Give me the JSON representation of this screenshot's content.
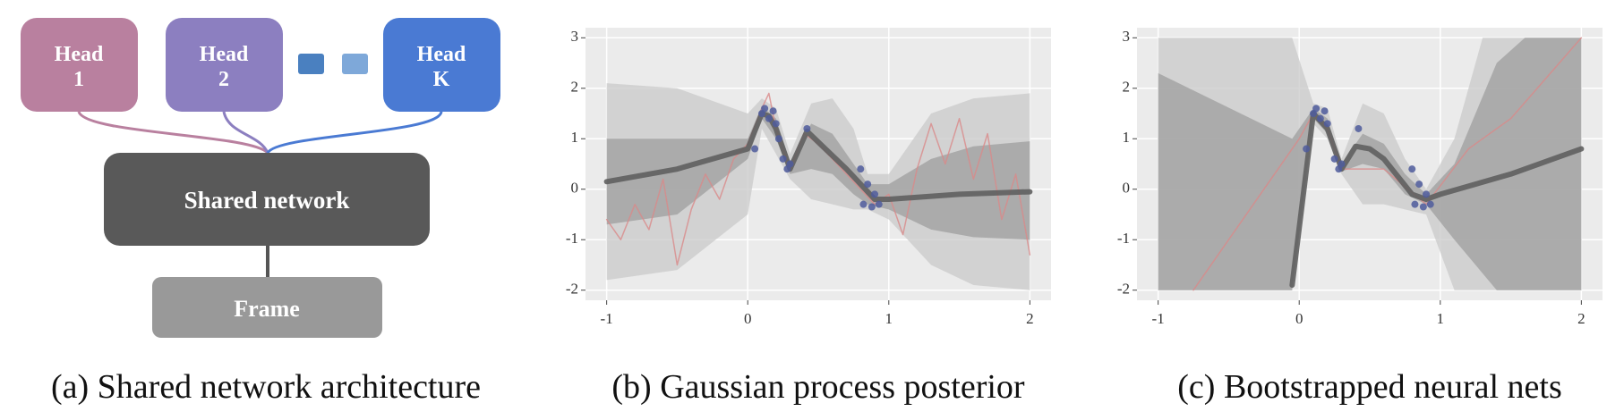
{
  "diagram": {
    "nodes": [
      {
        "label": [
          "Head",
          "1"
        ]
      },
      {
        "label": [
          "Head",
          "2"
        ]
      },
      {
        "label": [
          "Head",
          "K"
        ]
      },
      {
        "label": [
          "Shared network"
        ]
      },
      {
        "label": [
          "Frame"
        ]
      }
    ]
  },
  "captions": [
    "(a) Shared network architecture",
    "(b) Gaussian process posterior",
    "(c) Bootstrapped neural nets"
  ],
  "chart_data": [
    {
      "type": "band",
      "xlim": [
        -1.15,
        2.15
      ],
      "ylim": [
        -2.2,
        3.2
      ],
      "xticks": [
        -1,
        0,
        1,
        2
      ],
      "yticks": [
        -2,
        -1,
        0,
        1,
        2,
        3
      ],
      "grid": true,
      "band_outer": {
        "color": "#c9c9c9",
        "x": [
          -1,
          -0.5,
          0,
          0.1,
          0.2,
          0.3,
          0.45,
          0.6,
          0.75,
          0.85,
          1.0,
          1.3,
          1.6,
          2.0
        ],
        "lower": [
          -1.8,
          -1.6,
          -0.5,
          1.2,
          0.7,
          0.2,
          -0.2,
          -0.3,
          -0.4,
          -0.4,
          -0.6,
          -1.5,
          -1.9,
          -2.0
        ],
        "upper": [
          2.1,
          2.0,
          1.5,
          1.8,
          1.6,
          0.7,
          1.7,
          1.8,
          1.2,
          0.3,
          0.3,
          1.5,
          1.8,
          1.9
        ]
      },
      "band_inner": {
        "color": "#9e9e9e",
        "x": [
          -1,
          -0.5,
          0,
          0.1,
          0.2,
          0.3,
          0.45,
          0.6,
          0.75,
          0.85,
          1.0,
          1.3,
          1.6,
          2.0
        ],
        "lower": [
          -0.7,
          -0.5,
          0.6,
          1.4,
          1.0,
          0.3,
          0.4,
          0.3,
          -0.1,
          -0.3,
          -0.4,
          -0.8,
          -0.95,
          -1.0
        ],
        "upper": [
          1.0,
          1.0,
          1.0,
          1.65,
          1.4,
          0.55,
          1.3,
          1.1,
          0.5,
          0.1,
          0.1,
          0.6,
          0.85,
          0.95
        ]
      },
      "sample": {
        "color": "#d98a8a",
        "x": [
          -1,
          -0.9,
          -0.8,
          -0.7,
          -0.6,
          -0.5,
          -0.4,
          -0.3,
          -0.2,
          -0.1,
          0,
          0.1,
          0.15,
          0.2,
          0.3,
          0.4,
          0.5,
          0.6,
          0.7,
          0.8,
          0.9,
          1.0,
          1.1,
          1.2,
          1.3,
          1.4,
          1.5,
          1.6,
          1.7,
          1.8,
          1.9,
          2.0
        ],
        "values": [
          -0.6,
          -1.0,
          -0.3,
          -0.8,
          0.2,
          -1.5,
          -0.4,
          0.3,
          -0.2,
          0.6,
          0.9,
          1.6,
          1.9,
          1.2,
          0.4,
          1.1,
          0.9,
          0.6,
          0.3,
          0.0,
          -0.3,
          -0.1,
          -0.9,
          0.4,
          1.3,
          0.5,
          1.4,
          0.2,
          1.1,
          -0.6,
          0.3,
          -1.3
        ]
      },
      "mean": {
        "color": "#5f5f5f",
        "x": [
          -1,
          -0.5,
          0,
          0.1,
          0.15,
          0.2,
          0.3,
          0.42,
          0.55,
          0.7,
          0.8,
          0.9,
          1.0,
          1.5,
          2.0
        ],
        "values": [
          0.15,
          0.4,
          0.8,
          1.5,
          1.45,
          1.2,
          0.4,
          1.15,
          0.8,
          0.4,
          0.1,
          -0.2,
          -0.2,
          -0.1,
          -0.05
        ]
      },
      "points": {
        "color": "#4f5c9c",
        "x": [
          0.05,
          0.1,
          0.12,
          0.15,
          0.18,
          0.2,
          0.22,
          0.25,
          0.28,
          0.3,
          0.42,
          0.8,
          0.82,
          0.85,
          0.88,
          0.9,
          0.93
        ],
        "values": [
          0.8,
          1.5,
          1.6,
          1.4,
          1.55,
          1.3,
          1.0,
          0.6,
          0.4,
          0.5,
          1.2,
          0.4,
          -0.3,
          0.1,
          -0.35,
          -0.1,
          -0.3
        ]
      }
    },
    {
      "type": "band",
      "xlim": [
        -1.15,
        2.15
      ],
      "ylim": [
        -2.2,
        3.2
      ],
      "xticks": [
        -1,
        0,
        1,
        2
      ],
      "yticks": [
        -2,
        -1,
        0,
        1,
        2,
        3
      ],
      "grid": true,
      "band_outer": {
        "color": "#c9c9c9",
        "x": [
          -1,
          -0.05,
          0.1,
          0.2,
          0.3,
          0.45,
          0.6,
          0.75,
          0.9,
          1.1,
          1.3,
          2.0
        ],
        "lower": [
          -2,
          -2,
          1.3,
          1.0,
          0.3,
          -0.3,
          -0.3,
          -0.4,
          -0.5,
          -2,
          -2,
          -2
        ],
        "upper": [
          3,
          3,
          1.7,
          1.6,
          0.6,
          1.7,
          1.5,
          0.6,
          0.0,
          1.0,
          3,
          3
        ]
      },
      "band_inner": {
        "color": "#9e9e9e",
        "x": [
          -1,
          -0.05,
          0.1,
          0.2,
          0.3,
          0.45,
          0.6,
          0.75,
          0.9,
          1.1,
          1.4,
          1.6,
          2.0
        ],
        "lower": [
          -2,
          -2,
          1.4,
          1.1,
          0.35,
          0.5,
          0.4,
          -0.1,
          -0.3,
          -1.0,
          -2,
          -2,
          -2
        ],
        "upper": [
          2.3,
          1.0,
          1.6,
          1.4,
          0.5,
          1.1,
          0.9,
          0.3,
          -0.1,
          0.5,
          2.5,
          3,
          3
        ]
      },
      "sample": {
        "color": "#d98a8a",
        "x": [
          -0.75,
          0,
          0.1,
          0.2,
          0.3,
          0.6,
          0.9,
          1.2,
          1.5,
          2.0
        ],
        "values": [
          -2,
          1.0,
          1.5,
          1.2,
          0.4,
          0.4,
          -0.3,
          0.8,
          1.4,
          3
        ]
      },
      "mean": {
        "color": "#5f5f5f",
        "x": [
          -0.05,
          0.1,
          0.2,
          0.3,
          0.4,
          0.5,
          0.6,
          0.8,
          0.9,
          1.0,
          1.5,
          2.0
        ],
        "values": [
          -1.9,
          1.5,
          1.2,
          0.4,
          0.85,
          0.8,
          0.6,
          -0.1,
          -0.2,
          -0.1,
          0.3,
          0.8
        ]
      },
      "points": {
        "color": "#4f5c9c",
        "x": [
          0.05,
          0.1,
          0.12,
          0.15,
          0.18,
          0.2,
          0.25,
          0.28,
          0.3,
          0.42,
          0.8,
          0.82,
          0.85,
          0.88,
          0.9,
          0.93
        ],
        "values": [
          0.8,
          1.5,
          1.6,
          1.4,
          1.55,
          1.3,
          0.6,
          0.4,
          0.5,
          1.2,
          0.4,
          -0.3,
          0.1,
          -0.35,
          -0.1,
          -0.3
        ]
      }
    }
  ]
}
